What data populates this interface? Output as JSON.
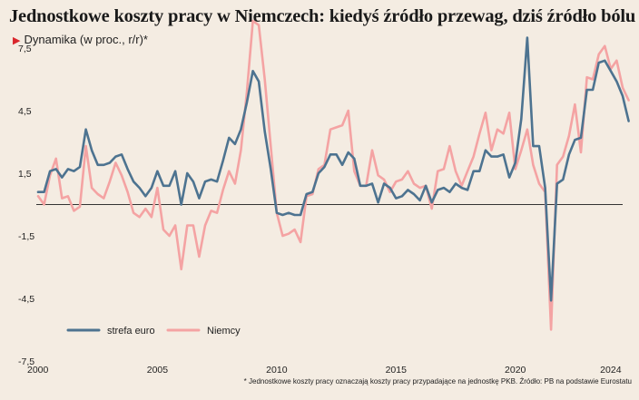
{
  "title": "Jednostkowe koszty pracy w Niemczech: kiedyś źródło przewag, dziś źródło bólu",
  "subtitle": "Dynamika (w proc., r/r)*",
  "footnote": "* Jednostkowe koszty pracy oznaczają koszty pracy przypadające na jednostkę PKB. Źródło: PB na podstawie Eurostatu",
  "colors": {
    "strefa_euro": "#4d7390",
    "niemcy": "#f4a3a3",
    "background": "#f4ece2",
    "marker": "#d9262c"
  },
  "chart_data": {
    "type": "line",
    "title": "Jednostkowe koszty pracy w Niemczech: kiedyś źródło przewag, dziś źródło bólu",
    "ylabel": "Dynamika (w proc., r/r)*",
    "xlabel": "",
    "ylim": [
      -7.5,
      8.5
    ],
    "xlim": [
      2000,
      2024.5
    ],
    "yticks": [
      "7,5",
      "4,5",
      "1,5",
      "-1,5",
      "-4,5",
      "-7,5"
    ],
    "ytick_values": [
      7.5,
      4.5,
      1.5,
      -1.5,
      -4.5,
      -7.5
    ],
    "xticks": [
      "2000",
      "2005",
      "2010",
      "2015",
      "2020",
      "2024"
    ],
    "xtick_values": [
      2000,
      2005,
      2010,
      2015,
      2020,
      2024
    ],
    "x_start": 2000,
    "x_step": 0.25,
    "legend": {
      "placement": "bottom-left",
      "entries": [
        "strefa euro",
        "Niemcy"
      ]
    },
    "series": [
      {
        "name": "strefa euro",
        "values": [
          0.6,
          0.6,
          1.6,
          1.7,
          1.3,
          1.7,
          1.6,
          1.8,
          3.6,
          2.6,
          1.9,
          1.9,
          2.0,
          2.3,
          2.4,
          1.7,
          1.1,
          0.8,
          0.4,
          0.8,
          1.6,
          0.9,
          0.9,
          1.6,
          0.0,
          1.5,
          1.1,
          0.3,
          1.1,
          1.2,
          1.1,
          2.1,
          3.2,
          2.9,
          3.6,
          4.9,
          6.4,
          5.9,
          3.5,
          1.7,
          -0.4,
          -0.5,
          -0.4,
          -0.5,
          -0.5,
          0.5,
          0.6,
          1.5,
          1.8,
          2.4,
          2.4,
          1.9,
          2.5,
          2.2,
          0.9,
          0.9,
          1.0,
          0.1,
          1.0,
          0.8,
          0.3,
          0.4,
          0.7,
          0.5,
          0.2,
          0.9,
          0.1,
          0.7,
          0.8,
          0.6,
          1.0,
          0.8,
          0.7,
          1.6,
          1.6,
          2.6,
          2.3,
          2.3,
          2.4,
          1.3,
          2.0,
          4.1,
          8.0,
          2.8,
          2.8,
          0.8,
          -4.6,
          1.0,
          1.2,
          2.4,
          3.1,
          3.2,
          5.5,
          5.5,
          6.8,
          6.9,
          6.4,
          5.9,
          5.2,
          4.0
        ]
      },
      {
        "name": "Niemcy",
        "values": [
          0.4,
          0.0,
          1.4,
          2.2,
          0.3,
          0.4,
          -0.3,
          -0.1,
          2.8,
          0.8,
          0.5,
          0.3,
          1.1,
          2.0,
          1.4,
          0.6,
          -0.4,
          -0.6,
          -0.2,
          -0.6,
          0.8,
          -1.2,
          -1.5,
          -1.0,
          -3.1,
          -1.0,
          -1.0,
          -2.5,
          -1.0,
          -0.3,
          -0.4,
          0.7,
          1.6,
          1.0,
          2.6,
          5.4,
          8.8,
          8.6,
          6.0,
          2.8,
          -0.4,
          -1.5,
          -1.4,
          -1.2,
          -1.8,
          0.4,
          0.5,
          1.7,
          1.9,
          3.6,
          3.7,
          3.8,
          4.5,
          1.6,
          0.9,
          0.9,
          2.6,
          1.4,
          1.2,
          0.6,
          1.1,
          1.2,
          1.6,
          1.0,
          0.8,
          0.9,
          -0.2,
          1.6,
          1.7,
          2.8,
          1.6,
          0.9,
          1.6,
          2.3,
          3.4,
          4.4,
          2.6,
          3.6,
          3.4,
          4.4,
          1.7,
          2.6,
          3.6,
          1.9,
          1.0,
          0.6,
          -6.0,
          1.9,
          2.3,
          3.3,
          4.8,
          2.5,
          6.1,
          6.0,
          7.2,
          7.6,
          6.5,
          6.9,
          5.6,
          5.0
        ]
      }
    ]
  }
}
